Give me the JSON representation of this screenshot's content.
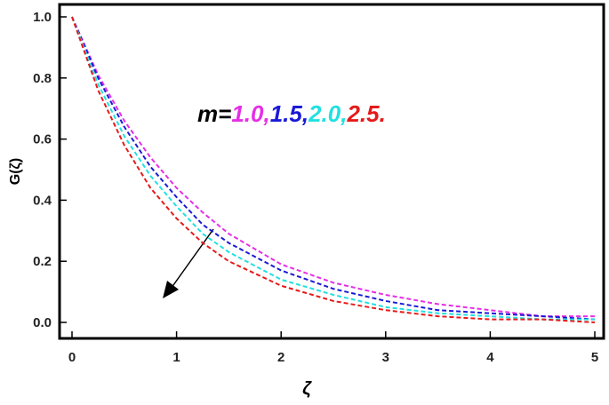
{
  "chart_data": {
    "type": "line",
    "x_label": "ζ",
    "y_label": "G(ζ)",
    "annotation": "m=",
    "x": [
      0,
      0.25,
      0.5,
      0.75,
      1,
      1.25,
      1.5,
      2,
      2.5,
      3,
      3.5,
      4,
      4.5,
      5
    ],
    "series": [
      {
        "name": "1.0,",
        "color": "#e62ee6",
        "values": [
          1,
          0.81,
          0.66,
          0.54,
          0.44,
          0.36,
          0.29,
          0.19,
          0.13,
          0.09,
          0.06,
          0.04,
          0.02,
          0.02
        ]
      },
      {
        "name": "1.5,",
        "color": "#1a1ad6",
        "values": [
          1,
          0.8,
          0.64,
          0.51,
          0.41,
          0.32,
          0.26,
          0.17,
          0.11,
          0.07,
          0.04,
          0.03,
          0.02,
          0.01
        ]
      },
      {
        "name": "2.0,",
        "color": "#22e0e0",
        "values": [
          1,
          0.78,
          0.61,
          0.48,
          0.38,
          0.29,
          0.23,
          0.14,
          0.09,
          0.05,
          0.03,
          0.02,
          0.01,
          0.01
        ]
      },
      {
        "name": "2.5.",
        "color": "#e61a1a",
        "values": [
          1,
          0.76,
          0.58,
          0.44,
          0.34,
          0.26,
          0.2,
          0.12,
          0.07,
          0.04,
          0.02,
          0.01,
          0.01,
          0
        ]
      }
    ],
    "xlim": [
      0,
      5
    ],
    "xticks": [
      0,
      1,
      2,
      3,
      4,
      5
    ],
    "ylim": [
      0,
      1
    ],
    "yticks": [
      {
        "value": 0,
        "label": "0.0"
      },
      0.2,
      0.4,
      0.6,
      0.8,
      {
        "value": 1,
        "label": "1.0"
      }
    ]
  }
}
